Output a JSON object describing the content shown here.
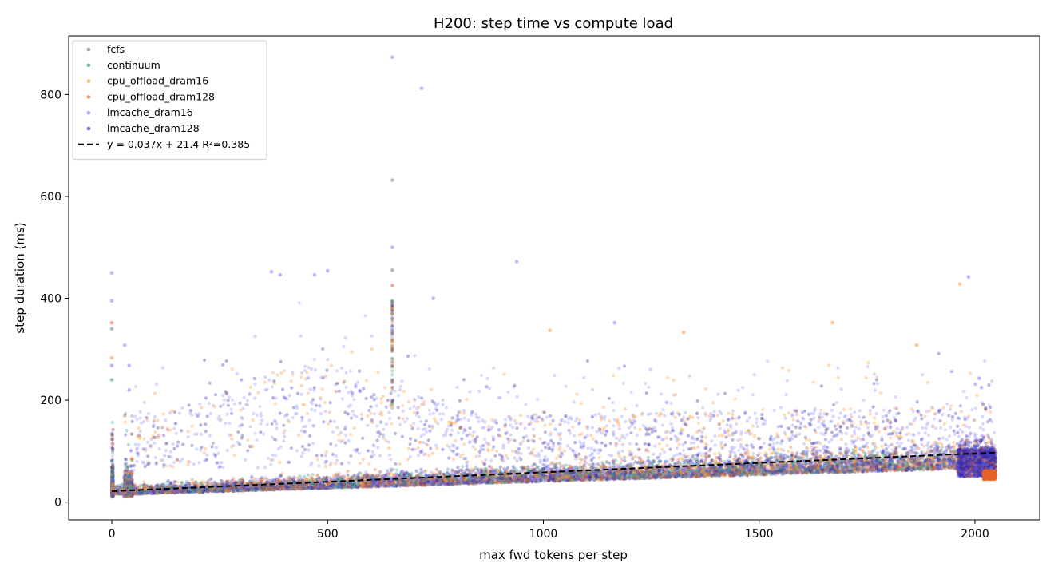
{
  "chart_data": {
    "type": "scatter",
    "title": "H200: step time vs compute load",
    "xlabel": "max fwd tokens per step",
    "ylabel": "step duration (ms)",
    "xlim": [
      -100,
      2150
    ],
    "ylim": [
      -35,
      915
    ],
    "xticks": [
      0,
      500,
      1000,
      1500,
      2000
    ],
    "yticks": [
      0,
      200,
      400,
      600,
      800
    ],
    "grid": false,
    "legend_position": "upper-left",
    "series": [
      {
        "name": "fcfs",
        "color": "#7f7f7f",
        "alpha": 0.35
      },
      {
        "name": "continuum",
        "color": "#2ca089",
        "alpha": 0.35
      },
      {
        "name": "cpu_offload_dram16",
        "color": "#ff9933",
        "alpha": 0.35
      },
      {
        "name": "cpu_offload_dram128",
        "color": "#e5642a",
        "alpha": 0.35
      },
      {
        "name": "lmcache_dram16",
        "color": "#8080ff",
        "alpha": 0.3
      },
      {
        "name": "lmcache_dram128",
        "color": "#3a2fb0",
        "alpha": 0.35
      }
    ],
    "points": [
      {
        "x": 650,
        "y": 873,
        "series": "lmcache_dram16"
      },
      {
        "x": 718,
        "y": 812,
        "series": "lmcache_dram16"
      },
      {
        "x": 650,
        "y": 632,
        "series": "fcfs"
      },
      {
        "x": 650,
        "y": 500,
        "series": "lmcache_dram16"
      },
      {
        "x": 650,
        "y": 455,
        "series": "fcfs"
      },
      {
        "x": 650,
        "y": 425,
        "series": "cpu_offload_dram128"
      },
      {
        "x": 650,
        "y": 395,
        "series": "continuum"
      },
      {
        "x": 650,
        "y": 380,
        "series": "cpu_offload_dram16"
      },
      {
        "x": 650,
        "y": 360,
        "series": "lmcache_dram16"
      },
      {
        "x": 650,
        "y": 330,
        "series": "fcfs"
      },
      {
        "x": 650,
        "y": 315,
        "series": "cpu_offload_dram16"
      },
      {
        "x": 0,
        "y": 450,
        "series": "lmcache_dram16"
      },
      {
        "x": 0,
        "y": 395,
        "series": "lmcache_dram16"
      },
      {
        "x": 0,
        "y": 352,
        "series": "cpu_offload_dram128"
      },
      {
        "x": 0,
        "y": 340,
        "series": "fcfs"
      },
      {
        "x": 0,
        "y": 283,
        "series": "cpu_offload_dram16"
      },
      {
        "x": 0,
        "y": 268,
        "series": "lmcache_dram16"
      },
      {
        "x": 0,
        "y": 240,
        "series": "continuum"
      },
      {
        "x": 30,
        "y": 308,
        "series": "lmcache_dram16"
      },
      {
        "x": 40,
        "y": 268,
        "series": "lmcache_dram16"
      },
      {
        "x": 40,
        "y": 220,
        "series": "lmcache_dram16"
      },
      {
        "x": 938,
        "y": 472,
        "series": "lmcache_dram16"
      },
      {
        "x": 745,
        "y": 400,
        "series": "lmcache_dram16"
      },
      {
        "x": 1985,
        "y": 442,
        "series": "lmcache_dram16"
      },
      {
        "x": 1965,
        "y": 428,
        "series": "cpu_offload_dram16"
      },
      {
        "x": 370,
        "y": 452,
        "series": "lmcache_dram16"
      },
      {
        "x": 390,
        "y": 446,
        "series": "lmcache_dram16"
      },
      {
        "x": 500,
        "y": 454,
        "series": "lmcache_dram16"
      },
      {
        "x": 470,
        "y": 446,
        "series": "lmcache_dram16"
      },
      {
        "x": 1865,
        "y": 308,
        "series": "cpu_offload_dram16"
      },
      {
        "x": 1670,
        "y": 352,
        "series": "cpu_offload_dram16"
      },
      {
        "x": 1325,
        "y": 333,
        "series": "cpu_offload_dram16"
      },
      {
        "x": 1165,
        "y": 352,
        "series": "lmcache_dram16"
      },
      {
        "x": 1015,
        "y": 337,
        "series": "cpu_offload_dram16"
      },
      {
        "x": 2010,
        "y": 243,
        "series": "lmcache_dram16"
      },
      {
        "x": 2015,
        "y": 225,
        "series": "lmcache_dram16"
      }
    ],
    "trend_lines": [
      {
        "label": "y = 0.037x + 21.4  R²=0.385",
        "slope": 0.037,
        "intercept": 21.4,
        "r2": 0.385,
        "x_range": [
          0,
          2048
        ],
        "color": "#000000",
        "style": "dashed"
      }
    ]
  }
}
